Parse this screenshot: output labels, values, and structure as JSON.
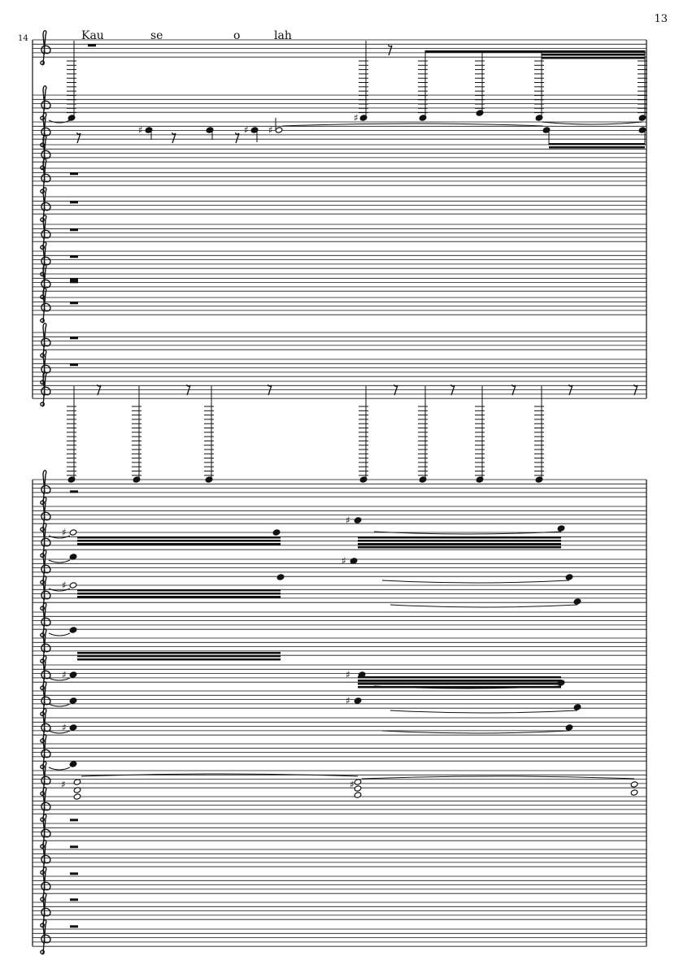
{
  "page": {
    "number": "13"
  },
  "system1": {
    "measure_number": "14",
    "lyrics": [
      "Kau",
      "se",
      "o",
      "lah"
    ]
  },
  "colors": {
    "ink": "#111111",
    "paper": "#ffffff"
  }
}
